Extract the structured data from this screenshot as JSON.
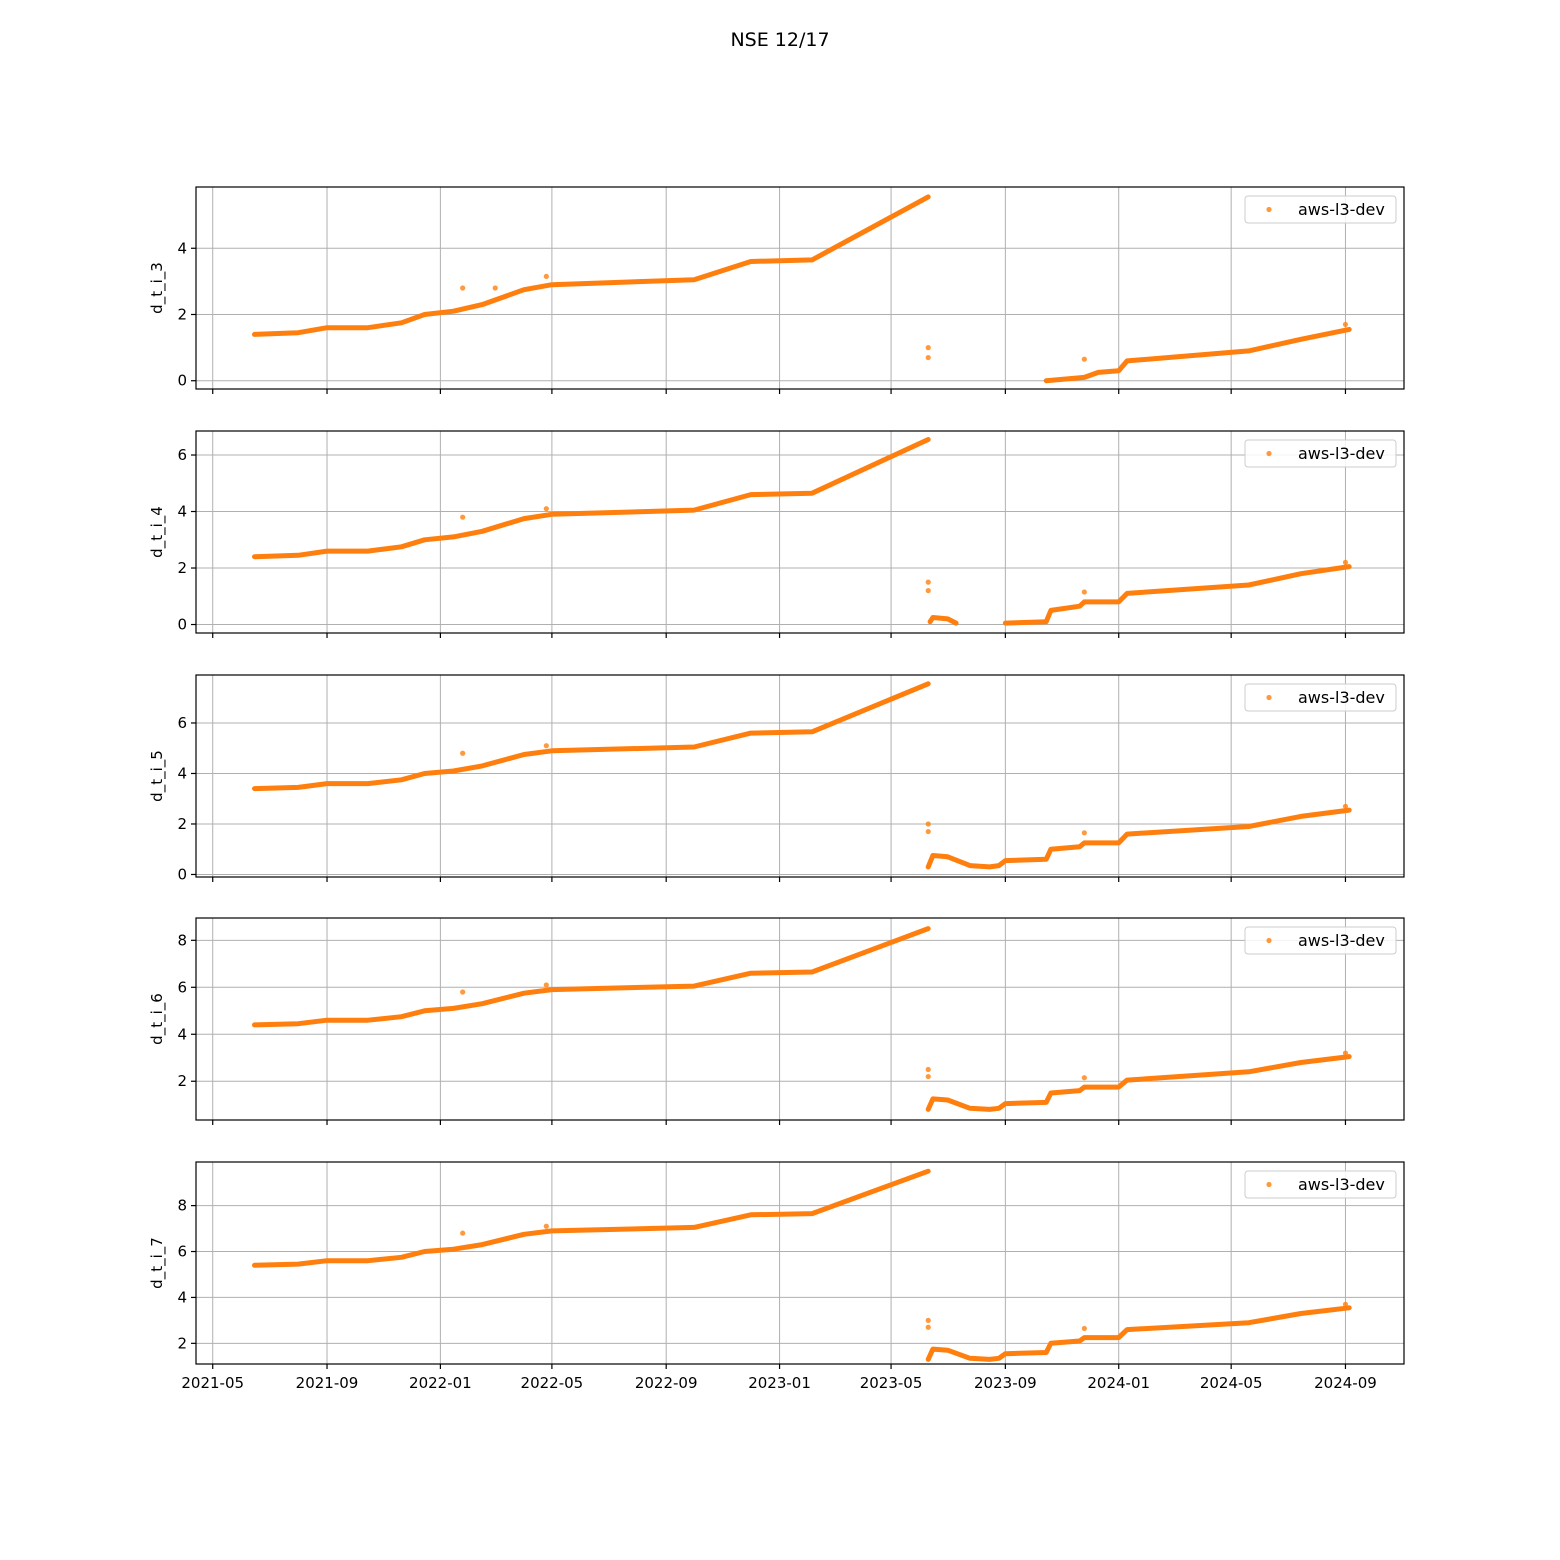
{
  "chart_data": {
    "type": "scatter",
    "title": "NSE 12/17",
    "color": "#ff7f0e",
    "legend": {
      "label": "aws-l3-dev",
      "placement": "top-right"
    },
    "x": {
      "type": "date",
      "range": [
        "2021-04-13",
        "2024-11-03"
      ],
      "tick_labels": [
        "2021-05",
        "2021-09",
        "2022-01",
        "2022-05",
        "2022-09",
        "2023-01",
        "2023-05",
        "2023-09",
        "2024-01",
        "2024-05",
        "2024-09"
      ],
      "tick_dates": [
        "2021-05-01",
        "2021-09-01",
        "2022-01-01",
        "2022-05-01",
        "2022-09-01",
        "2023-01-01",
        "2023-05-01",
        "2023-09-01",
        "2024-01-01",
        "2024-05-01",
        "2024-09-01"
      ]
    },
    "panels": [
      {
        "ylabel": "d_t_i_3",
        "ylim": [
          -0.25,
          5.85
        ],
        "yticks": [
          0,
          2,
          4
        ],
        "ytick_labels": [
          "0",
          "2",
          "4"
        ],
        "segments": [
          [
            [
              "2021-06-15",
              1.4
            ],
            [
              "2021-08-01",
              1.45
            ],
            [
              "2021-09-01",
              1.6
            ],
            [
              "2021-10-15",
              1.6
            ],
            [
              "2021-11-20",
              1.75
            ],
            [
              "2021-12-15",
              2.0
            ],
            [
              "2022-01-15",
              2.1
            ],
            [
              "2022-02-15",
              2.3
            ],
            [
              "2022-04-01",
              2.75
            ],
            [
              "2022-05-01",
              2.9
            ],
            [
              "2022-10-01",
              3.05
            ],
            [
              "2022-12-01",
              3.6
            ],
            [
              "2023-02-05",
              3.65
            ],
            [
              "2023-06-10",
              5.55
            ]
          ],
          [
            [
              "2023-10-15",
              0.0
            ],
            [
              "2023-11-25",
              0.1
            ],
            [
              "2023-12-10",
              0.25
            ],
            [
              "2024-01-01",
              0.3
            ],
            [
              "2024-01-10",
              0.6
            ],
            [
              "2024-05-20",
              0.9
            ],
            [
              "2024-07-15",
              1.25
            ],
            [
              "2024-09-05",
              1.55
            ]
          ]
        ],
        "outliers": [
          [
            "2022-01-25",
            2.8
          ],
          [
            "2022-03-01",
            2.8
          ],
          [
            "2022-04-25",
            3.15
          ],
          [
            "2023-06-10",
            1.0
          ],
          [
            "2023-06-10",
            0.7
          ],
          [
            "2023-11-25",
            0.65
          ],
          [
            "2024-09-01",
            1.7
          ]
        ]
      },
      {
        "ylabel": "d_t_i_4",
        "ylim": [
          -0.3,
          6.85
        ],
        "yticks": [
          0,
          2,
          4,
          6
        ],
        "ytick_labels": [
          "0",
          "2",
          "4",
          "6"
        ],
        "segments": [
          [
            [
              "2021-06-15",
              2.4
            ],
            [
              "2021-08-01",
              2.45
            ],
            [
              "2021-09-01",
              2.6
            ],
            [
              "2021-10-15",
              2.6
            ],
            [
              "2021-11-20",
              2.75
            ],
            [
              "2021-12-15",
              3.0
            ],
            [
              "2022-01-15",
              3.1
            ],
            [
              "2022-02-15",
              3.3
            ],
            [
              "2022-04-01",
              3.75
            ],
            [
              "2022-05-01",
              3.9
            ],
            [
              "2022-10-01",
              4.05
            ],
            [
              "2022-12-01",
              4.6
            ],
            [
              "2023-02-05",
              4.65
            ],
            [
              "2023-06-10",
              6.55
            ]
          ],
          [
            [
              "2023-06-12",
              0.1
            ],
            [
              "2023-06-15",
              0.25
            ],
            [
              "2023-07-01",
              0.2
            ],
            [
              "2023-07-10",
              0.05
            ]
          ],
          [
            [
              "2023-09-01",
              0.05
            ],
            [
              "2023-10-15",
              0.1
            ],
            [
              "2023-10-20",
              0.5
            ],
            [
              "2023-11-20",
              0.65
            ],
            [
              "2023-11-25",
              0.8
            ],
            [
              "2024-01-01",
              0.8
            ],
            [
              "2024-01-10",
              1.1
            ],
            [
              "2024-05-20",
              1.4
            ],
            [
              "2024-07-15",
              1.8
            ],
            [
              "2024-09-05",
              2.05
            ]
          ]
        ],
        "outliers": [
          [
            "2022-01-25",
            3.8
          ],
          [
            "2022-04-25",
            4.1
          ],
          [
            "2023-06-10",
            1.5
          ],
          [
            "2023-06-10",
            1.2
          ],
          [
            "2023-11-25",
            1.15
          ],
          [
            "2024-09-01",
            2.2
          ]
        ]
      },
      {
        "ylabel": "d_t_i_5",
        "ylim": [
          -0.1,
          7.9
        ],
        "yticks": [
          0,
          2,
          4,
          6
        ],
        "ytick_labels": [
          "0",
          "2",
          "4",
          "6"
        ],
        "segments": [
          [
            [
              "2021-06-15",
              3.4
            ],
            [
              "2021-08-01",
              3.45
            ],
            [
              "2021-09-01",
              3.6
            ],
            [
              "2021-10-15",
              3.6
            ],
            [
              "2021-11-20",
              3.75
            ],
            [
              "2021-12-15",
              4.0
            ],
            [
              "2022-01-15",
              4.1
            ],
            [
              "2022-02-15",
              4.3
            ],
            [
              "2022-04-01",
              4.75
            ],
            [
              "2022-05-01",
              4.9
            ],
            [
              "2022-10-01",
              5.05
            ],
            [
              "2022-12-01",
              5.6
            ],
            [
              "2023-02-05",
              5.65
            ],
            [
              "2023-06-10",
              7.55
            ]
          ],
          [
            [
              "2023-06-10",
              0.3
            ],
            [
              "2023-06-15",
              0.75
            ],
            [
              "2023-07-01",
              0.7
            ],
            [
              "2023-07-25",
              0.35
            ],
            [
              "2023-08-15",
              0.3
            ],
            [
              "2023-08-25",
              0.35
            ],
            [
              "2023-09-01",
              0.55
            ],
            [
              "2023-10-15",
              0.6
            ],
            [
              "2023-10-20",
              1.0
            ],
            [
              "2023-11-20",
              1.1
            ],
            [
              "2023-11-25",
              1.25
            ],
            [
              "2024-01-01",
              1.25
            ],
            [
              "2024-01-10",
              1.6
            ],
            [
              "2024-05-20",
              1.9
            ],
            [
              "2024-07-15",
              2.3
            ],
            [
              "2024-09-05",
              2.55
            ]
          ]
        ],
        "outliers": [
          [
            "2022-01-25",
            4.8
          ],
          [
            "2022-04-25",
            5.1
          ],
          [
            "2023-06-10",
            2.0
          ],
          [
            "2023-06-10",
            1.7
          ],
          [
            "2023-11-25",
            1.65
          ],
          [
            "2024-09-01",
            2.7
          ]
        ]
      },
      {
        "ylabel": "d_t_i_6",
        "ylim": [
          0.35,
          8.95
        ],
        "yticks": [
          2,
          4,
          6,
          8
        ],
        "ytick_labels": [
          "2",
          "4",
          "6",
          "8"
        ],
        "segments": [
          [
            [
              "2021-06-15",
              4.4
            ],
            [
              "2021-08-01",
              4.45
            ],
            [
              "2021-09-01",
              4.6
            ],
            [
              "2021-10-15",
              4.6
            ],
            [
              "2021-11-20",
              4.75
            ],
            [
              "2021-12-15",
              5.0
            ],
            [
              "2022-01-15",
              5.1
            ],
            [
              "2022-02-15",
              5.3
            ],
            [
              "2022-04-01",
              5.75
            ],
            [
              "2022-05-01",
              5.9
            ],
            [
              "2022-10-01",
              6.05
            ],
            [
              "2022-12-01",
              6.6
            ],
            [
              "2023-02-05",
              6.65
            ],
            [
              "2023-06-10",
              8.5
            ]
          ],
          [
            [
              "2023-06-10",
              0.8
            ],
            [
              "2023-06-15",
              1.25
            ],
            [
              "2023-07-01",
              1.2
            ],
            [
              "2023-07-25",
              0.85
            ],
            [
              "2023-08-15",
              0.8
            ],
            [
              "2023-08-25",
              0.85
            ],
            [
              "2023-09-01",
              1.05
            ],
            [
              "2023-10-15",
              1.1
            ],
            [
              "2023-10-20",
              1.5
            ],
            [
              "2023-11-20",
              1.6
            ],
            [
              "2023-11-25",
              1.75
            ],
            [
              "2024-01-01",
              1.75
            ],
            [
              "2024-01-10",
              2.05
            ],
            [
              "2024-05-20",
              2.4
            ],
            [
              "2024-07-15",
              2.8
            ],
            [
              "2024-09-05",
              3.05
            ]
          ]
        ],
        "outliers": [
          [
            "2022-01-25",
            5.8
          ],
          [
            "2022-04-25",
            6.1
          ],
          [
            "2023-06-10",
            2.5
          ],
          [
            "2023-06-10",
            2.2
          ],
          [
            "2023-11-25",
            2.15
          ],
          [
            "2024-09-01",
            3.2
          ]
        ]
      },
      {
        "ylabel": "d_t_i_7",
        "ylim": [
          1.1,
          9.9
        ],
        "yticks": [
          2,
          4,
          6,
          8
        ],
        "ytick_labels": [
          "2",
          "4",
          "6",
          "8"
        ],
        "segments": [
          [
            [
              "2021-06-15",
              5.4
            ],
            [
              "2021-08-01",
              5.45
            ],
            [
              "2021-09-01",
              5.6
            ],
            [
              "2021-10-15",
              5.6
            ],
            [
              "2021-11-20",
              5.75
            ],
            [
              "2021-12-15",
              6.0
            ],
            [
              "2022-01-15",
              6.1
            ],
            [
              "2022-02-15",
              6.3
            ],
            [
              "2022-04-01",
              6.75
            ],
            [
              "2022-05-01",
              6.9
            ],
            [
              "2022-10-01",
              7.05
            ],
            [
              "2022-12-01",
              7.6
            ],
            [
              "2023-02-05",
              7.65
            ],
            [
              "2023-06-10",
              9.5
            ]
          ],
          [
            [
              "2023-06-10",
              1.3
            ],
            [
              "2023-06-15",
              1.75
            ],
            [
              "2023-07-01",
              1.7
            ],
            [
              "2023-07-25",
              1.35
            ],
            [
              "2023-08-15",
              1.3
            ],
            [
              "2023-08-25",
              1.35
            ],
            [
              "2023-09-01",
              1.55
            ],
            [
              "2023-10-15",
              1.6
            ],
            [
              "2023-10-20",
              2.0
            ],
            [
              "2023-11-20",
              2.1
            ],
            [
              "2023-11-25",
              2.25
            ],
            [
              "2024-01-01",
              2.25
            ],
            [
              "2024-01-10",
              2.6
            ],
            [
              "2024-05-20",
              2.9
            ],
            [
              "2024-07-15",
              3.3
            ],
            [
              "2024-09-05",
              3.55
            ]
          ]
        ],
        "outliers": [
          [
            "2022-01-25",
            6.8
          ],
          [
            "2022-04-25",
            7.1
          ],
          [
            "2023-06-10",
            3.0
          ],
          [
            "2023-06-10",
            2.7
          ],
          [
            "2023-11-25",
            2.65
          ],
          [
            "2024-09-01",
            3.7
          ]
        ]
      }
    ]
  }
}
